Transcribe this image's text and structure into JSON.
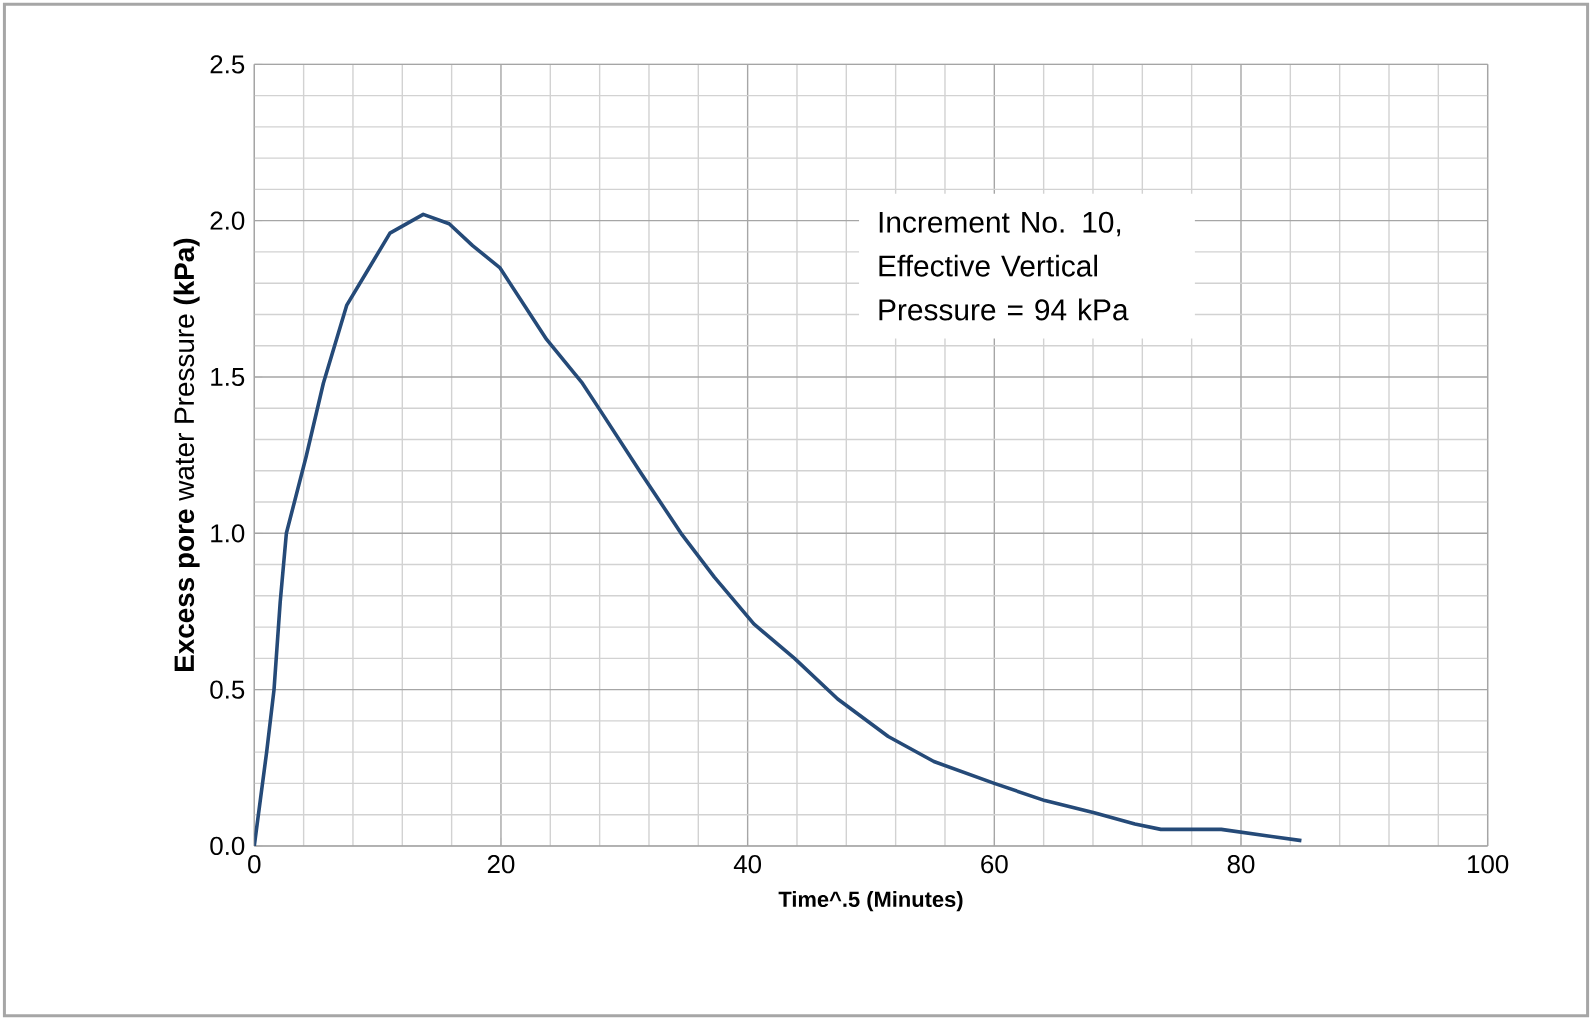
{
  "chart_data": {
    "type": "line",
    "xlabel": "Time^.5 (Minutes)",
    "ylabel": "**Excess pore** water Pressure **(kPa)**",
    "annotations": [
      "Increment No. 10, Effective Vertical Pressure = 94 kPa"
    ],
    "xlim": [
      0,
      100
    ],
    "ylim": [
      0,
      2.5
    ],
    "xticks": [
      0,
      20,
      40,
      60,
      80,
      100
    ],
    "yticks": [
      {
        "value": 0,
        "label": "0.0"
      },
      {
        "value": 0.5,
        "label": "0.5"
      },
      {
        "value": 1,
        "label": "1.0"
      },
      {
        "value": 1.5,
        "label": "1.5"
      },
      {
        "value": 2,
        "label": "2.0"
      },
      {
        "value": 2.5,
        "label": "2.5"
      }
    ],
    "grid": true,
    "marker": "none",
    "line_style": "solid",
    "series": [
      {
        "color": "#254a78",
        "x": [
          0,
          1,
          1.6,
          2.1,
          2.6,
          4.2,
          5.6,
          7.5,
          9.1,
          11.0,
          13.7,
          15.8,
          17.7,
          19.9,
          23.7,
          26.6,
          28.1,
          31.4,
          34.6,
          37.3,
          40.5,
          43.8,
          47.3,
          51.4,
          55.1,
          60,
          64.1,
          68.1,
          71.4,
          73.5,
          78.4,
          82.2,
          84.9
        ],
        "values": [
          0,
          0.3,
          0.5,
          0.78,
          1.0,
          1.245,
          1.48,
          1.73,
          1.835,
          1.96,
          2.02,
          1.99,
          1.92,
          1.85,
          1.62,
          1.48,
          1.39,
          1.19,
          1.0,
          0.86,
          0.71,
          0.6,
          0.47,
          0.35,
          0.27,
          0.2,
          0.145,
          0.106,
          0.07,
          0.053,
          0.053,
          0.032,
          0.017
        ]
      }
    ]
  }
}
